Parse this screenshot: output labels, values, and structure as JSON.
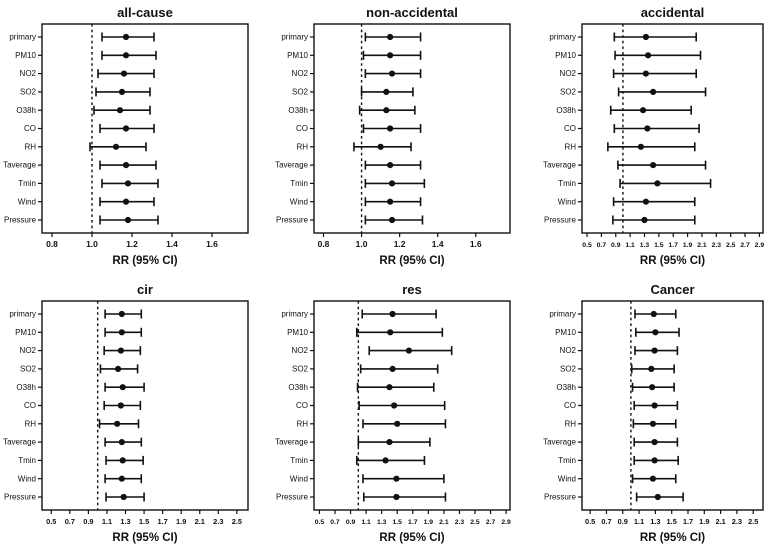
{
  "figure": {
    "background_color": "#ffffff",
    "ink_color": "#111111",
    "x_axis_label": "RR (95% CI)",
    "reference_line": 1.0,
    "row_labels": [
      "primary",
      "PM10",
      "NO2",
      "SO2",
      "O38h",
      "CO",
      "RH",
      "Taverage",
      "Tmin",
      "Wind",
      "Pressure"
    ]
  },
  "chart_data": [
    {
      "type": "scatter",
      "subtype": "forest",
      "title": "all-cause",
      "xlabel": "RR (95% CI)",
      "ref_line": 1.0,
      "xticks": [
        0.8,
        1.0,
        1.2,
        1.4,
        1.6
      ],
      "xlim": [
        0.75,
        1.78
      ],
      "grid": false,
      "categories": [
        "primary",
        "PM10",
        "NO2",
        "SO2",
        "O38h",
        "CO",
        "RH",
        "Taverage",
        "Tmin",
        "Wind",
        "Pressure"
      ],
      "points": [
        {
          "label": "primary",
          "rr": 1.17,
          "lo": 1.05,
          "hi": 1.31
        },
        {
          "label": "PM10",
          "rr": 1.17,
          "lo": 1.05,
          "hi": 1.32
        },
        {
          "label": "NO2",
          "rr": 1.16,
          "lo": 1.03,
          "hi": 1.31
        },
        {
          "label": "SO2",
          "rr": 1.15,
          "lo": 1.02,
          "hi": 1.29
        },
        {
          "label": "O38h",
          "rr": 1.14,
          "lo": 1.01,
          "hi": 1.29
        },
        {
          "label": "CO",
          "rr": 1.17,
          "lo": 1.04,
          "hi": 1.31
        },
        {
          "label": "RH",
          "rr": 1.12,
          "lo": 0.99,
          "hi": 1.27
        },
        {
          "label": "Taverage",
          "rr": 1.17,
          "lo": 1.04,
          "hi": 1.32
        },
        {
          "label": "Tmin",
          "rr": 1.18,
          "lo": 1.05,
          "hi": 1.33
        },
        {
          "label": "Wind",
          "rr": 1.17,
          "lo": 1.04,
          "hi": 1.31
        },
        {
          "label": "Pressure",
          "rr": 1.18,
          "lo": 1.04,
          "hi": 1.33
        }
      ]
    },
    {
      "type": "scatter",
      "subtype": "forest",
      "title": "non-accidental",
      "xlabel": "RR (95% CI)",
      "ref_line": 1.0,
      "xticks": [
        0.8,
        1.0,
        1.2,
        1.4,
        1.6
      ],
      "xlim": [
        0.75,
        1.78
      ],
      "grid": false,
      "categories": [
        "primary",
        "PM10",
        "NO2",
        "SO2",
        "O38h",
        "CO",
        "RH",
        "Taverage",
        "Tmin",
        "Wind",
        "Pressure"
      ],
      "points": [
        {
          "label": "primary",
          "rr": 1.15,
          "lo": 1.02,
          "hi": 1.31
        },
        {
          "label": "PM10",
          "rr": 1.15,
          "lo": 1.01,
          "hi": 1.31
        },
        {
          "label": "NO2",
          "rr": 1.16,
          "lo": 1.02,
          "hi": 1.31
        },
        {
          "label": "SO2",
          "rr": 1.13,
          "lo": 1.0,
          "hi": 1.27
        },
        {
          "label": "O38h",
          "rr": 1.13,
          "lo": 0.99,
          "hi": 1.28
        },
        {
          "label": "CO",
          "rr": 1.15,
          "lo": 1.01,
          "hi": 1.31
        },
        {
          "label": "RH",
          "rr": 1.1,
          "lo": 0.96,
          "hi": 1.26
        },
        {
          "label": "Taverage",
          "rr": 1.15,
          "lo": 1.02,
          "hi": 1.31
        },
        {
          "label": "Tmin",
          "rr": 1.16,
          "lo": 1.02,
          "hi": 1.33
        },
        {
          "label": "Wind",
          "rr": 1.15,
          "lo": 1.02,
          "hi": 1.31
        },
        {
          "label": "Pressure",
          "rr": 1.16,
          "lo": 1.02,
          "hi": 1.32
        }
      ]
    },
    {
      "type": "scatter",
      "subtype": "forest",
      "title": "accidental",
      "xlabel": "RR (95% CI)",
      "ref_line": 1.0,
      "xticks": [
        0.5,
        0.7,
        0.9,
        1.1,
        1.3,
        1.5,
        1.7,
        1.9,
        2.1,
        2.3,
        2.5,
        2.7,
        2.9
      ],
      "xlim": [
        0.43,
        2.95
      ],
      "grid": false,
      "categories": [
        "primary",
        "PM10",
        "NO2",
        "SO2",
        "O38h",
        "CO",
        "RH",
        "Taverage",
        "Tmin",
        "Wind",
        "Pressure"
      ],
      "points": [
        {
          "label": "primary",
          "rr": 1.32,
          "lo": 0.88,
          "hi": 2.02
        },
        {
          "label": "PM10",
          "rr": 1.35,
          "lo": 0.89,
          "hi": 2.08
        },
        {
          "label": "NO2",
          "rr": 1.32,
          "lo": 0.87,
          "hi": 2.02
        },
        {
          "label": "SO2",
          "rr": 1.42,
          "lo": 0.94,
          "hi": 2.15
        },
        {
          "label": "O38h",
          "rr": 1.28,
          "lo": 0.83,
          "hi": 1.95
        },
        {
          "label": "CO",
          "rr": 1.34,
          "lo": 0.88,
          "hi": 2.06
        },
        {
          "label": "RH",
          "rr": 1.25,
          "lo": 0.79,
          "hi": 2.0
        },
        {
          "label": "Taverage",
          "rr": 1.42,
          "lo": 0.93,
          "hi": 2.15
        },
        {
          "label": "Tmin",
          "rr": 1.48,
          "lo": 0.96,
          "hi": 2.22
        },
        {
          "label": "Wind",
          "rr": 1.32,
          "lo": 0.87,
          "hi": 2.0
        },
        {
          "label": "Pressure",
          "rr": 1.3,
          "lo": 0.86,
          "hi": 2.0
        }
      ]
    },
    {
      "type": "scatter",
      "subtype": "forest",
      "title": "cir",
      "xlabel": "RR (95% CI)",
      "ref_line": 1.0,
      "xticks": [
        0.5,
        0.7,
        0.9,
        1.1,
        1.3,
        1.5,
        1.7,
        1.9,
        2.1,
        2.3,
        2.5
      ],
      "xlim": [
        0.4,
        2.62
      ],
      "grid": false,
      "categories": [
        "primary",
        "PM10",
        "NO2",
        "SO2",
        "O38h",
        "CO",
        "RH",
        "Taverage",
        "Tmin",
        "Wind",
        "Pressure"
      ],
      "points": [
        {
          "label": "primary",
          "rr": 1.26,
          "lo": 1.08,
          "hi": 1.47
        },
        {
          "label": "PM10",
          "rr": 1.26,
          "lo": 1.08,
          "hi": 1.47
        },
        {
          "label": "NO2",
          "rr": 1.25,
          "lo": 1.07,
          "hi": 1.46
        },
        {
          "label": "SO2",
          "rr": 1.22,
          "lo": 1.03,
          "hi": 1.43
        },
        {
          "label": "O38h",
          "rr": 1.27,
          "lo": 1.08,
          "hi": 1.5
        },
        {
          "label": "CO",
          "rr": 1.25,
          "lo": 1.07,
          "hi": 1.46
        },
        {
          "label": "RH",
          "rr": 1.21,
          "lo": 1.02,
          "hi": 1.44
        },
        {
          "label": "Taverage",
          "rr": 1.26,
          "lo": 1.08,
          "hi": 1.47
        },
        {
          "label": "Tmin",
          "rr": 1.27,
          "lo": 1.09,
          "hi": 1.49
        },
        {
          "label": "Wind",
          "rr": 1.26,
          "lo": 1.08,
          "hi": 1.47
        },
        {
          "label": "Pressure",
          "rr": 1.28,
          "lo": 1.09,
          "hi": 1.5
        }
      ]
    },
    {
      "type": "scatter",
      "subtype": "forest",
      "title": "res",
      "xlabel": "RR (95% CI)",
      "ref_line": 1.0,
      "xticks": [
        0.5,
        0.7,
        0.9,
        1.1,
        1.3,
        1.5,
        1.7,
        1.9,
        2.1,
        2.3,
        2.5,
        2.7,
        2.9
      ],
      "xlim": [
        0.43,
        2.95
      ],
      "grid": false,
      "categories": [
        "primary",
        "PM10",
        "NO2",
        "SO2",
        "O38h",
        "CO",
        "RH",
        "Taverage",
        "Tmin",
        "Wind",
        "Pressure"
      ],
      "points": [
        {
          "label": "primary",
          "rr": 1.44,
          "lo": 1.05,
          "hi": 2.0
        },
        {
          "label": "PM10",
          "rr": 1.41,
          "lo": 0.98,
          "hi": 2.08
        },
        {
          "label": "NO2",
          "rr": 1.65,
          "lo": 1.14,
          "hi": 2.2
        },
        {
          "label": "SO2",
          "rr": 1.44,
          "lo": 1.03,
          "hi": 2.02
        },
        {
          "label": "O38h",
          "rr": 1.4,
          "lo": 0.99,
          "hi": 1.97
        },
        {
          "label": "CO",
          "rr": 1.46,
          "lo": 1.01,
          "hi": 2.11
        },
        {
          "label": "RH",
          "rr": 1.5,
          "lo": 1.06,
          "hi": 2.12
        },
        {
          "label": "Taverage",
          "rr": 1.4,
          "lo": 1.0,
          "hi": 1.92
        },
        {
          "label": "Tmin",
          "rr": 1.35,
          "lo": 0.98,
          "hi": 1.85
        },
        {
          "label": "Wind",
          "rr": 1.49,
          "lo": 1.06,
          "hi": 2.1
        },
        {
          "label": "Pressure",
          "rr": 1.49,
          "lo": 1.07,
          "hi": 2.12
        }
      ]
    },
    {
      "type": "scatter",
      "subtype": "forest",
      "title": "Cancer",
      "xlabel": "RR (95% CI)",
      "ref_line": 1.0,
      "xticks": [
        0.5,
        0.7,
        0.9,
        1.1,
        1.3,
        1.5,
        1.7,
        1.9,
        2.1,
        2.3,
        2.5
      ],
      "xlim": [
        0.4,
        2.62
      ],
      "grid": false,
      "categories": [
        "primary",
        "PM10",
        "NO2",
        "SO2",
        "O38h",
        "CO",
        "RH",
        "Taverage",
        "Tmin",
        "Wind",
        "Pressure"
      ],
      "points": [
        {
          "label": "primary",
          "rr": 1.28,
          "lo": 1.05,
          "hi": 1.55
        },
        {
          "label": "PM10",
          "rr": 1.3,
          "lo": 1.06,
          "hi": 1.59
        },
        {
          "label": "NO2",
          "rr": 1.29,
          "lo": 1.05,
          "hi": 1.57
        },
        {
          "label": "SO2",
          "rr": 1.25,
          "lo": 1.01,
          "hi": 1.53
        },
        {
          "label": "O38h",
          "rr": 1.26,
          "lo": 1.02,
          "hi": 1.53
        },
        {
          "label": "CO",
          "rr": 1.29,
          "lo": 1.04,
          "hi": 1.57
        },
        {
          "label": "RH",
          "rr": 1.27,
          "lo": 1.03,
          "hi": 1.55
        },
        {
          "label": "Taverage",
          "rr": 1.29,
          "lo": 1.04,
          "hi": 1.57
        },
        {
          "label": "Tmin",
          "rr": 1.29,
          "lo": 1.04,
          "hi": 1.58
        },
        {
          "label": "Wind",
          "rr": 1.27,
          "lo": 1.02,
          "hi": 1.55
        },
        {
          "label": "Pressure",
          "rr": 1.33,
          "lo": 1.07,
          "hi": 1.64
        }
      ]
    }
  ]
}
